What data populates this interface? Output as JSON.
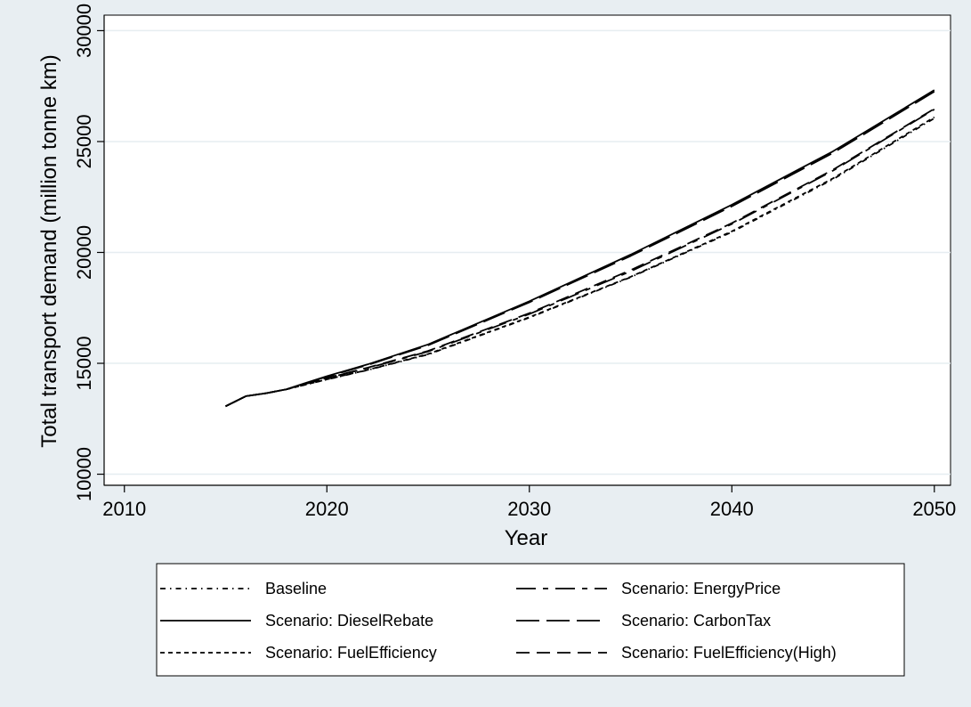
{
  "chart_data": {
    "type": "line",
    "xlabel": "Year",
    "ylabel": "Total transport demand (million tonne km)",
    "xlim": [
      2009,
      2050.8
    ],
    "ylim": [
      9500,
      30700
    ],
    "x_ticks": [
      "2010",
      "2020",
      "2030",
      "2040",
      "2050"
    ],
    "y_ticks": [
      "10000",
      "15000",
      "20000",
      "25000",
      "30000"
    ],
    "grid": "horizontal",
    "legend_position": "bottom",
    "x": [
      2015,
      2016,
      2017,
      2018,
      2019,
      2020,
      2022,
      2025,
      2030,
      2035,
      2040,
      2045,
      2050
    ],
    "series": [
      {
        "name": "Baseline",
        "dash": "dashdot-fine",
        "color": "#000000",
        "values": [
          13060,
          13520,
          13650,
          13830,
          14050,
          14270,
          14690,
          15400,
          17060,
          18880,
          20920,
          23300,
          26050
        ]
      },
      {
        "name": "Scenario: EnergyPrice",
        "dash": "dashdot-long",
        "color": "#000000",
        "values": [
          13060,
          13520,
          13650,
          13830,
          14080,
          14330,
          14780,
          15530,
          17220,
          19150,
          21280,
          23690,
          26450
        ]
      },
      {
        "name": "Scenario: DieselRebate",
        "dash": "solid",
        "color": "#000000",
        "values": [
          13060,
          13520,
          13650,
          13830,
          14130,
          14420,
          14950,
          15850,
          17800,
          19900,
          22150,
          24560,
          27320
        ]
      },
      {
        "name": "Scenario: CarbonTax",
        "dash": "longdash",
        "color": "#000000",
        "values": [
          13060,
          13520,
          13650,
          13830,
          14120,
          14400,
          14920,
          15810,
          17750,
          19840,
          22080,
          24490,
          27250
        ]
      },
      {
        "name": "Scenario: FuelEfficiency",
        "dash": "shortdash",
        "color": "#000000",
        "values": [
          13060,
          13520,
          13650,
          13830,
          14050,
          14280,
          14700,
          15420,
          17080,
          18900,
          20950,
          23340,
          26100
        ]
      },
      {
        "name": "Scenario: FuelEfficiency(High)",
        "dash": "dash",
        "color": "#000000",
        "values": [
          13060,
          13520,
          13650,
          13830,
          14090,
          14340,
          14800,
          15560,
          17260,
          19200,
          21320,
          23730,
          26480
        ]
      }
    ]
  }
}
